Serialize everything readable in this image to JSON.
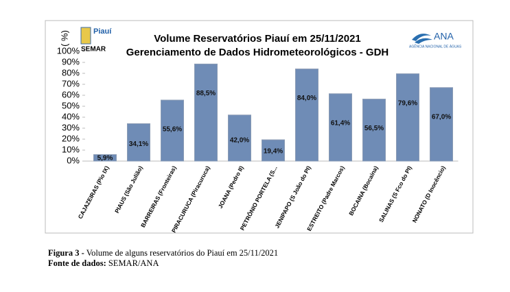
{
  "chart_data": {
    "type": "bar",
    "title": "Volume Reservatórios Piauí em 25/11/2021",
    "subtitle": "Gerenciamento de Dados Hidrometeorológicos - GDH",
    "y_label": "( %)",
    "categories": [
      "CAJAZEIRAS (Pio IX)",
      "PIAUS (São Julião)",
      "BARREIRAS (Fronteiras)",
      "PIRACURUCA (Piracuruca)",
      "JOANA (Pedro II)",
      "PETRÔNIO PORTELA (S...",
      "JENIPAPO (S João do PI)",
      "ESTREITO (Padre Marcos)",
      "BOCAINA (Bocaina)",
      "SALINAS (S Fco do PI)",
      "NONATO (D Inocêncio)"
    ],
    "values": [
      5.9,
      34.1,
      55.6,
      88.5,
      42.0,
      19.4,
      84.0,
      61.4,
      56.5,
      79.6,
      67.0
    ],
    "value_labels": [
      "5,9%",
      "34,1%",
      "55,6%",
      "88,5%",
      "42,0%",
      "19,4%",
      "84,0%",
      "61,4%",
      "56,5%",
      "79,6%",
      "67,0%"
    ],
    "color": "#6f8cb6",
    "ylim": [
      0,
      100
    ],
    "yticks": [
      {
        "value": 0,
        "label": "0%"
      },
      {
        "value": 10,
        "label": "10%"
      },
      {
        "value": 20,
        "label": "20%"
      },
      {
        "value": 30,
        "label": "30%"
      },
      {
        "value": 40,
        "label": "40%"
      },
      {
        "value": 50,
        "label": "50%"
      },
      {
        "value": 60,
        "label": "60%"
      },
      {
        "value": 70,
        "label": "70%"
      },
      {
        "value": 80,
        "label": "80%"
      },
      {
        "value": 90,
        "label": "90%"
      },
      {
        "value": 100,
        "label": "100%"
      }
    ],
    "grid": false
  },
  "logos": {
    "piaui": "Piauí",
    "semar": "SEMAR",
    "ana": "ANA",
    "ana_sub": "AGÊNCIA NACIONAL DE ÁGUAS"
  },
  "caption": {
    "label": "Figura 3 -",
    "text": "Volume de alguns reservatórios do Piauí em 25/11/2021"
  },
  "source": {
    "label": "Fonte de dados:",
    "text": "SEMAR/ANA"
  }
}
